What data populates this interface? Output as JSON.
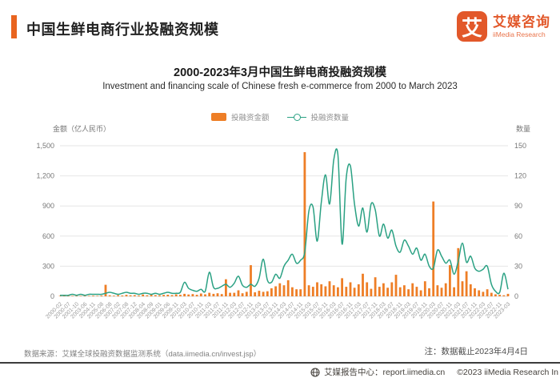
{
  "header": {
    "title": "中国生鲜电商行业投融资规模"
  },
  "logo": {
    "mark": "艾",
    "name_cn": "艾媒咨询",
    "name_en": "iiMedia Research"
  },
  "footer": {
    "source": "数据来源：艾媒全球投融资数据监测系统（data.iimedia.cn/invest.jsp）",
    "note": "注：数据截止2023年4月4日",
    "report_center": "艾媒报告中心：report.iimedia.cn",
    "copyright": "©2023  iiMedia Research In"
  },
  "chart_data": {
    "type": "bar+line",
    "title": "2000-2023年3月中国生鲜电商投融资规模",
    "subtitle": "Investment and financing scale of Chinese fresh e-commerce from 2000 to March 2023",
    "legend": [
      {
        "label": "投融资金额",
        "type": "bar",
        "color": "#ee7e26"
      },
      {
        "label": "投融资数量",
        "type": "line",
        "color": "#2aa183"
      }
    ],
    "colors": {
      "bar": "#ee7e26",
      "line": "#2aa183",
      "grid": "#e6e6e6",
      "axis_text": "#777777",
      "x_text": "#999999"
    },
    "left_axis": {
      "label": "金额（亿人民币）",
      "ticks": [
        "0",
        "300",
        "600",
        "900",
        "1,200",
        "1,500"
      ],
      "max": 1500
    },
    "right_axis": {
      "label": "数量",
      "ticks": [
        "0",
        "30",
        "60",
        "90",
        "120",
        "150"
      ],
      "max": 150
    },
    "grid": true,
    "legend_position": "top-center",
    "points_per_tick": 2,
    "x_tick_labels": [
      "2000-02",
      "2000-07",
      "2001-10",
      "2003-06",
      "2004-11",
      "2005-08",
      "2006-08",
      "2007-02",
      "2007-08",
      "2007-12",
      "2008-04",
      "2008-09",
      "2009-01",
      "2009-06",
      "2009-11",
      "2010-03",
      "2010-07",
      "2010-11",
      "2011-03",
      "2011-07",
      "2011-11",
      "2012-03",
      "2012-07",
      "2012-11",
      "2013-03",
      "2013-07",
      "2013-11",
      "2014-03",
      "2014-07",
      "2014-11",
      "2015-03",
      "2015-07",
      "2015-11",
      "2016-03",
      "2016-07",
      "2016-11",
      "2017-03",
      "2017-07",
      "2017-11",
      "2018-03",
      "2018-07",
      "2018-11",
      "2019-03",
      "2019-07",
      "2019-11",
      "2020-03",
      "2020-07",
      "2020-11",
      "2021-03",
      "2021-07",
      "2021-11",
      "2022-03",
      "2022-07",
      "2022-11",
      "2023-03"
    ],
    "series": {
      "amount_billion_rmb": [
        2,
        1,
        3,
        2,
        4,
        2,
        5,
        3,
        6,
        4,
        8,
        115,
        10,
        6,
        12,
        8,
        15,
        10,
        12,
        8,
        18,
        10,
        15,
        12,
        10,
        14,
        16,
        12,
        20,
        15,
        25,
        18,
        22,
        15,
        28,
        20,
        35,
        25,
        30,
        22,
        170,
        35,
        35,
        60,
        30,
        45,
        310,
        40,
        55,
        45,
        50,
        80,
        100,
        130,
        110,
        160,
        90,
        70,
        70,
        1436,
        110,
        95,
        140,
        120,
        100,
        150,
        110,
        90,
        180,
        95,
        140,
        85,
        120,
        225,
        140,
        75,
        190,
        95,
        130,
        85,
        140,
        215,
        90,
        110,
        70,
        130,
        95,
        60,
        150,
        80,
        945,
        110,
        85,
        130,
        310,
        90,
        480,
        150,
        250,
        120,
        80,
        60,
        45,
        70,
        35,
        20,
        15,
        10,
        25
      ],
      "count": [
        1,
        1,
        1,
        2,
        1,
        2,
        1,
        2,
        2,
        2,
        2,
        3,
        4,
        3,
        2,
        3,
        4,
        3,
        3,
        2,
        3,
        3,
        2,
        3,
        2,
        3,
        4,
        3,
        3,
        4,
        14,
        8,
        6,
        5,
        7,
        5,
        24,
        9,
        8,
        10,
        12,
        9,
        13,
        20,
        11,
        9,
        12,
        10,
        18,
        37,
        16,
        14,
        22,
        18,
        30,
        36,
        42,
        33,
        36,
        44,
        85,
        89,
        55,
        94,
        121,
        92,
        136,
        141,
        52,
        118,
        130,
        92,
        70,
        88,
        64,
        92,
        86,
        60,
        72,
        58,
        66,
        50,
        44,
        56,
        50,
        42,
        48,
        36,
        42,
        30,
        28,
        46,
        40,
        33,
        36,
        22,
        35,
        53,
        34,
        40,
        28,
        25,
        27,
        30,
        12,
        5,
        4,
        23,
        7
      ]
    }
  }
}
